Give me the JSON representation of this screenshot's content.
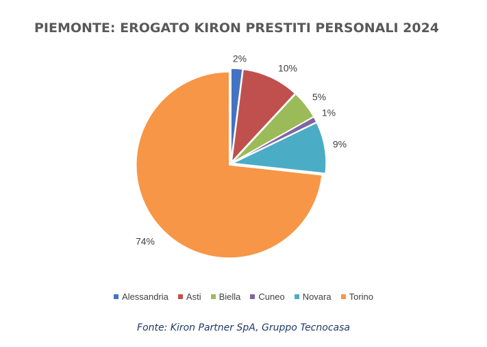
{
  "chart_data": {
    "type": "pie",
    "title": "PIEMONTE: EROGATO KIRON PRESTITI PERSONALI 2024",
    "categories": [
      "Alessandria",
      "Asti",
      "Biella",
      "Cuneo",
      "Novara",
      "Torino"
    ],
    "values": [
      2,
      10,
      5,
      1,
      9,
      74
    ],
    "labels": [
      "2%",
      "10%",
      "5%",
      "1%",
      "9%",
      "74%"
    ],
    "colors": [
      "#4472C4",
      "#C0504D",
      "#9BBB59",
      "#8064A2",
      "#4BACC6",
      "#F79646"
    ],
    "legend_position": "bottom",
    "source": "Fonte: Kiron Partner SpA, Gruppo Tecnocasa"
  }
}
